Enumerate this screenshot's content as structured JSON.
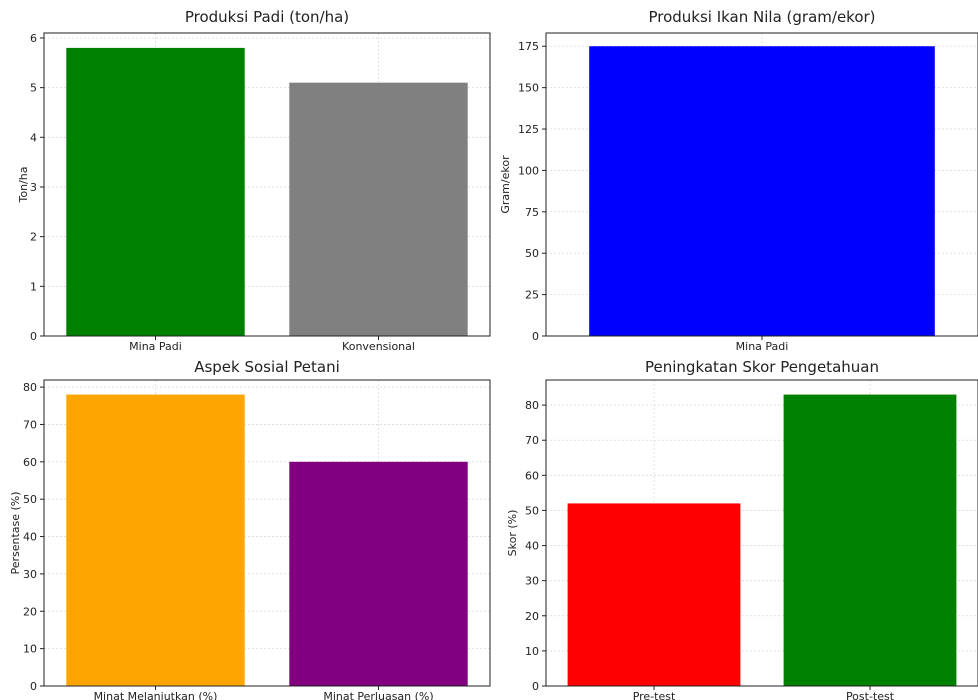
{
  "chart_data": [
    {
      "type": "bar",
      "title": "Produksi Padi (ton/ha)",
      "ylabel": "Ton/ha",
      "categories": [
        "Mina Padi",
        "Konvensional"
      ],
      "values": [
        5.8,
        5.1
      ],
      "colors": [
        "#008000",
        "#808080"
      ],
      "ylim": [
        0,
        6.1
      ],
      "yticks": [
        0,
        1,
        2,
        3,
        4,
        5,
        6
      ],
      "grid": true
    },
    {
      "type": "bar",
      "title": "Produksi Ikan Nila (gram/ekor)",
      "ylabel": "Gram/ekor",
      "categories": [
        "Mina Padi"
      ],
      "values": [
        175
      ],
      "colors": [
        "#0000ff"
      ],
      "ylim": [
        0,
        183
      ],
      "yticks": [
        0,
        25,
        50,
        75,
        100,
        125,
        150,
        175
      ],
      "grid": true
    },
    {
      "type": "bar",
      "title": "Aspek Sosial Petani",
      "ylabel": "Persentase (%)",
      "categories": [
        "Minat Melanjutkan (%)",
        "Minat Perluasan (%)"
      ],
      "values": [
        78,
        60
      ],
      "colors": [
        "#ffa500",
        "#800080"
      ],
      "ylim": [
        0,
        81.9
      ],
      "yticks": [
        0,
        10,
        20,
        30,
        40,
        50,
        60,
        70,
        80
      ],
      "grid": true
    },
    {
      "type": "bar",
      "title": "Peningkatan Skor Pengetahuan",
      "ylabel": "Skor (%)",
      "categories": [
        "Pre-test",
        "Post-test"
      ],
      "values": [
        52,
        83
      ],
      "colors": [
        "#ff0000",
        "#008000"
      ],
      "ylim": [
        0,
        87.15
      ],
      "yticks": [
        0,
        10,
        20,
        30,
        40,
        50,
        60,
        70,
        80
      ],
      "grid": true
    }
  ]
}
